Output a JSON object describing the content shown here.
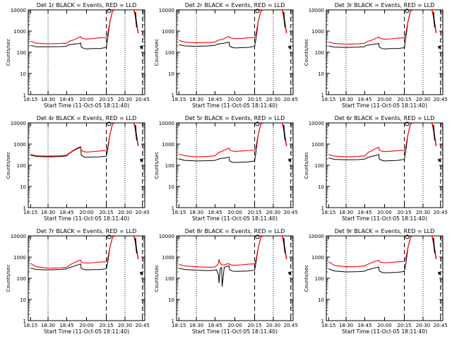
{
  "chart_data": [
    {
      "type": "line",
      "title": "Det 1r BLACK = Events, RED = LLD",
      "xlabel": "Start Time (11-Oct-05 18:11:40)",
      "ylabel": "Counts/sec",
      "yscale": "log",
      "ylim": [
        1,
        10000
      ],
      "series": [
        {
          "name": "Events",
          "color": "#000000",
          "x": [
            "18:13",
            "18:20",
            "18:30",
            "18:40",
            "18:45",
            "18:50",
            "19:00",
            "19:10",
            "19:20",
            "19:30",
            "19:38",
            "19:40",
            "19:50",
            "20:00",
            "20:05",
            "20:10",
            "20:15",
            "20:16",
            "20:18",
            "20:20",
            "20:22"
          ],
          "values": [
            210,
            180,
            180,
            185,
            190,
            220,
            230,
            240,
            250,
            260,
            270,
            180,
            150,
            145,
            150,
            150,
            170,
            400,
            3000,
            9000,
            10000
          ]
        },
        {
          "name": "LLD",
          "color": "#ff0000",
          "x": [
            "18:13",
            "18:20",
            "18:30",
            "18:40",
            "18:45",
            "18:50",
            "19:00",
            "19:10",
            "19:20",
            "19:30",
            "19:38",
            "19:40",
            "19:50",
            "20:00",
            "20:05",
            "20:10",
            "20:15",
            "20:16",
            "20:18",
            "20:20",
            "20:22"
          ],
          "values": [
            330,
            270,
            250,
            260,
            270,
            310,
            350,
            380,
            420,
            500,
            550,
            480,
            440,
            420,
            440,
            480,
            500,
            700,
            3000,
            9000,
            10000
          ]
        }
      ]
    },
    {
      "type": "line",
      "title": "Det 2r BLACK = Events, RED = LLD",
      "xlabel": "Start Time (11-Oct-05 18:11:40)",
      "ylabel": "Counts/sec",
      "yscale": "log",
      "ylim": [
        1,
        10000
      ],
      "series": [
        {
          "name": "Events",
          "color": "#000000",
          "x": [
            "18:13",
            "18:20",
            "18:30",
            "18:40",
            "18:45",
            "18:50",
            "19:00",
            "19:10",
            "19:20",
            "19:30",
            "19:38",
            "19:40",
            "19:50",
            "20:00",
            "20:05",
            "20:10",
            "20:15",
            "20:16",
            "20:18",
            "20:20",
            "20:22"
          ],
          "values": [
            230,
            200,
            190,
            200,
            210,
            230,
            250,
            260,
            270,
            290,
            300,
            200,
            170,
            160,
            165,
            170,
            190,
            400,
            3000,
            9000,
            10000
          ]
        },
        {
          "name": "LLD",
          "color": "#ff0000",
          "x": [
            "18:13",
            "18:20",
            "18:30",
            "18:40",
            "18:45",
            "18:50",
            "19:00",
            "19:10",
            "19:20",
            "19:30",
            "19:38",
            "19:40",
            "19:50",
            "20:00",
            "20:05",
            "20:10",
            "20:15",
            "20:16",
            "20:18",
            "20:20",
            "20:22"
          ],
          "values": [
            360,
            300,
            280,
            290,
            300,
            330,
            380,
            400,
            440,
            520,
            560,
            500,
            460,
            440,
            450,
            480,
            500,
            700,
            3000,
            9000,
            10000
          ]
        }
      ]
    },
    {
      "type": "line",
      "title": "Det 3r BLACK = Events, RED = LLD",
      "xlabel": "Start Time (11-Oct-05 18:11:40)",
      "ylabel": "Counts/sec",
      "yscale": "log",
      "ylim": [
        1,
        10000
      ],
      "series": [
        {
          "name": "Events",
          "color": "#000000",
          "x": [
            "18:13",
            "18:20",
            "18:30",
            "18:40",
            "18:45",
            "18:50",
            "19:00",
            "19:10",
            "19:20",
            "19:30",
            "19:38",
            "19:40",
            "19:50",
            "20:00",
            "20:05",
            "20:10",
            "20:15",
            "20:16",
            "20:18",
            "20:20",
            "20:22"
          ],
          "values": [
            200,
            175,
            170,
            175,
            185,
            210,
            220,
            230,
            240,
            250,
            260,
            175,
            150,
            145,
            150,
            150,
            165,
            400,
            3000,
            9000,
            10000
          ]
        },
        {
          "name": "LLD",
          "color": "#ff0000",
          "x": [
            "18:13",
            "18:20",
            "18:30",
            "18:40",
            "18:45",
            "18:50",
            "19:00",
            "19:10",
            "19:20",
            "19:30",
            "19:38",
            "19:40",
            "19:50",
            "20:00",
            "20:05",
            "20:10",
            "20:15",
            "20:16",
            "20:18",
            "20:20",
            "20:22"
          ],
          "values": [
            310,
            260,
            240,
            250,
            265,
            300,
            340,
            370,
            410,
            480,
            530,
            470,
            430,
            410,
            430,
            460,
            490,
            700,
            3000,
            9000,
            10000
          ]
        }
      ]
    },
    {
      "type": "line",
      "title": "Det 4r BLACK = Events, RED = LLD",
      "xlabel": "Start Time (11-Oct-05 18:11:40)",
      "ylabel": "Counts/sec",
      "yscale": "log",
      "ylim": [
        1,
        10000
      ],
      "series": [
        {
          "name": "Events",
          "color": "#000000",
          "x": [
            "18:13",
            "18:20",
            "18:30",
            "18:40",
            "18:45",
            "18:50",
            "19:00",
            "19:10",
            "19:20",
            "19:30",
            "19:38",
            "19:40",
            "19:50",
            "20:00",
            "20:05",
            "20:10",
            "20:15",
            "20:16",
            "20:18",
            "20:20",
            "20:22"
          ],
          "values": [
            300,
            260,
            250,
            260,
            280,
            320,
            400,
            480,
            560,
            640,
            700,
            300,
            250,
            240,
            245,
            250,
            270,
            500,
            3000,
            9000,
            10000
          ]
        },
        {
          "name": "LLD",
          "color": "#ff0000",
          "x": [
            "18:13",
            "18:20",
            "18:30",
            "18:40",
            "18:45",
            "18:50",
            "19:00",
            "19:10",
            "19:20",
            "19:30",
            "19:38",
            "19:40",
            "19:50",
            "20:00",
            "20:05",
            "20:10",
            "20:15",
            "20:16",
            "20:18",
            "20:20",
            "20:22"
          ],
          "values": [
            330,
            280,
            270,
            280,
            300,
            340,
            420,
            500,
            600,
            700,
            750,
            500,
            440,
            420,
            440,
            470,
            500,
            700,
            3000,
            9000,
            10000
          ]
        }
      ]
    },
    {
      "type": "line",
      "title": "Det 5r BLACK = Events, RED = LLD",
      "xlabel": "Start Time (11-Oct-05 18:11:40)",
      "ylabel": "Counts/sec",
      "yscale": "log",
      "ylim": [
        1,
        10000
      ],
      "series": [
        {
          "name": "Events",
          "color": "#000000",
          "x": [
            "18:13",
            "18:20",
            "18:30",
            "18:40",
            "18:45",
            "18:50",
            "19:00",
            "19:10",
            "19:20",
            "19:30",
            "19:38",
            "19:40",
            "19:50",
            "20:00",
            "20:05",
            "20:10",
            "20:15",
            "20:16",
            "20:18",
            "20:20",
            "20:22"
          ],
          "values": [
            200,
            170,
            160,
            165,
            170,
            180,
            200,
            210,
            220,
            230,
            240,
            160,
            140,
            135,
            140,
            145,
            160,
            400,
            3000,
            9000,
            10000
          ]
        },
        {
          "name": "LLD",
          "color": "#ff0000",
          "x": [
            "18:13",
            "18:20",
            "18:30",
            "18:40",
            "18:45",
            "18:50",
            "19:00",
            "19:10",
            "19:20",
            "19:30",
            "19:38",
            "19:40",
            "19:50",
            "20:00",
            "20:05",
            "20:10",
            "20:15",
            "20:16",
            "20:18",
            "20:20",
            "20:22"
          ],
          "values": [
            340,
            280,
            250,
            260,
            280,
            320,
            400,
            450,
            520,
            600,
            650,
            520,
            470,
            450,
            470,
            500,
            520,
            700,
            3000,
            9000,
            10000
          ]
        }
      ]
    },
    {
      "type": "line",
      "title": "Det 6r BLACK = Events, RED = LLD",
      "xlabel": "Start Time (11-Oct-05 18:11:40)",
      "ylabel": "Counts/sec",
      "yscale": "log",
      "ylim": [
        1,
        10000
      ],
      "series": [
        {
          "name": "Events",
          "color": "#000000",
          "x": [
            "18:13",
            "18:20",
            "18:30",
            "18:40",
            "18:45",
            "18:50",
            "19:00",
            "19:10",
            "19:20",
            "19:30",
            "19:38",
            "19:40",
            "19:50",
            "20:00",
            "20:05",
            "20:10",
            "20:15",
            "20:16",
            "20:18",
            "20:20",
            "20:22"
          ],
          "values": [
            220,
            190,
            180,
            185,
            195,
            215,
            240,
            260,
            280,
            300,
            320,
            200,
            170,
            160,
            165,
            170,
            190,
            400,
            3000,
            9000,
            10000
          ]
        },
        {
          "name": "LLD",
          "color": "#ff0000",
          "x": [
            "18:13",
            "18:20",
            "18:30",
            "18:40",
            "18:45",
            "18:50",
            "19:00",
            "19:10",
            "19:20",
            "19:30",
            "19:38",
            "19:40",
            "19:50",
            "20:00",
            "20:05",
            "20:10",
            "20:15",
            "20:16",
            "20:18",
            "20:20",
            "20:22"
          ],
          "values": [
            320,
            270,
            250,
            260,
            280,
            320,
            420,
            480,
            560,
            650,
            700,
            520,
            460,
            440,
            460,
            490,
            510,
            700,
            3000,
            9000,
            10000
          ]
        }
      ]
    },
    {
      "type": "line",
      "title": "Det 7r BLACK = Events, RED = LLD",
      "xlabel": "Start Time (11-Oct-05 18:11:40)",
      "ylabel": "Counts/sec",
      "yscale": "log",
      "ylim": [
        1,
        10000
      ],
      "series": [
        {
          "name": "Events",
          "color": "#000000",
          "x": [
            "18:13",
            "18:20",
            "18:30",
            "18:40",
            "18:45",
            "18:50",
            "19:00",
            "19:10",
            "19:20",
            "19:30",
            "19:38",
            "19:40",
            "19:50",
            "20:00",
            "20:05",
            "20:10",
            "20:15",
            "20:16",
            "20:18",
            "20:20",
            "20:22"
          ],
          "values": [
            300,
            260,
            250,
            260,
            280,
            300,
            330,
            360,
            400,
            440,
            470,
            300,
            260,
            250,
            255,
            260,
            280,
            500,
            3000,
            9000,
            10000
          ]
        },
        {
          "name": "LLD",
          "color": "#ff0000",
          "x": [
            "18:13",
            "18:20",
            "18:30",
            "18:40",
            "18:45",
            "18:50",
            "19:00",
            "19:10",
            "19:20",
            "19:30",
            "19:38",
            "19:40",
            "19:50",
            "20:00",
            "20:05",
            "20:10",
            "20:15",
            "20:16",
            "20:18",
            "20:20",
            "20:22"
          ],
          "values": [
            500,
            350,
            300,
            310,
            330,
            370,
            450,
            520,
            600,
            680,
            720,
            580,
            540,
            520,
            540,
            580,
            600,
            800,
            3000,
            9000,
            10000
          ]
        }
      ]
    },
    {
      "type": "line",
      "title": "Det 8r BLACK = Events, RED = LLD",
      "xlabel": "Start Time (11-Oct-05 18:11:40)",
      "ylabel": "Counts/sec",
      "yscale": "log",
      "ylim": [
        1,
        10000
      ],
      "series": [
        {
          "name": "Events",
          "color": "#000000",
          "x": [
            "18:13",
            "18:20",
            "18:30",
            "18:40",
            "18:45",
            "18:50",
            "18:58",
            "19:00",
            "19:05",
            "19:10",
            "19:12",
            "19:20",
            "19:30",
            "19:38",
            "19:40",
            "19:50",
            "20:00",
            "20:05",
            "20:10",
            "20:15",
            "20:16",
            "20:18",
            "20:20",
            "20:22"
          ],
          "values": [
            300,
            260,
            240,
            230,
            240,
            260,
            150,
            60,
            300,
            320,
            40,
            330,
            360,
            390,
            250,
            220,
            210,
            215,
            220,
            240,
            500,
            3000,
            9000,
            10000
          ]
        },
        {
          "name": "LLD",
          "color": "#ff0000",
          "x": [
            "18:13",
            "18:20",
            "18:30",
            "18:40",
            "18:45",
            "18:50",
            "18:58",
            "19:00",
            "19:05",
            "19:10",
            "19:12",
            "19:20",
            "19:30",
            "19:38",
            "19:40",
            "19:50",
            "20:00",
            "20:05",
            "20:10",
            "20:15",
            "20:16",
            "20:18",
            "20:20",
            "20:22"
          ],
          "values": [
            450,
            380,
            350,
            330,
            340,
            380,
            500,
            800,
            500,
            450,
            420,
            430,
            470,
            500,
            450,
            420,
            410,
            430,
            460,
            480,
            700,
            3000,
            9000,
            10000
          ]
        }
      ]
    },
    {
      "type": "line",
      "title": "Det 9r BLACK = Events, RED = LLD",
      "xlabel": "Start Time (11-Oct-05 18:11:40)",
      "ylabel": "Counts/sec",
      "yscale": "log",
      "ylim": [
        1,
        10000
      ],
      "series": [
        {
          "name": "Events",
          "color": "#000000",
          "x": [
            "18:13",
            "18:20",
            "18:30",
            "18:40",
            "18:45",
            "18:50",
            "19:00",
            "19:10",
            "19:20",
            "19:30",
            "19:38",
            "19:40",
            "19:50",
            "20:00",
            "20:05",
            "20:10",
            "20:15",
            "20:16",
            "20:18",
            "20:20",
            "20:22"
          ],
          "values": [
            280,
            220,
            200,
            205,
            215,
            240,
            260,
            280,
            300,
            320,
            340,
            220,
            190,
            180,
            185,
            190,
            210,
            400,
            3000,
            9000,
            10000
          ]
        },
        {
          "name": "LLD",
          "color": "#ff0000",
          "x": [
            "18:13",
            "18:20",
            "18:30",
            "18:40",
            "18:45",
            "18:50",
            "19:00",
            "19:10",
            "19:20",
            "19:30",
            "19:38",
            "19:40",
            "19:50",
            "20:00",
            "20:05",
            "20:10",
            "20:15",
            "20:16",
            "20:18",
            "20:20",
            "20:22"
          ],
          "values": [
            600,
            400,
            350,
            360,
            380,
            420,
            480,
            540,
            600,
            660,
            700,
            600,
            560,
            540,
            560,
            600,
            620,
            800,
            3000,
            9000,
            10000
          ]
        }
      ]
    }
  ],
  "x_ticks": [
    "18:15",
    "18:30",
    "18:45",
    "20:00",
    "20:15",
    "20:30",
    "20:45"
  ],
  "y_ticks": [
    "1",
    "10",
    "100",
    "1000",
    "10000"
  ],
  "vertical_lines": {
    "dotted": [
      "18:30",
      "20:30"
    ],
    "dashed": [
      "20:15",
      "20:45"
    ]
  }
}
